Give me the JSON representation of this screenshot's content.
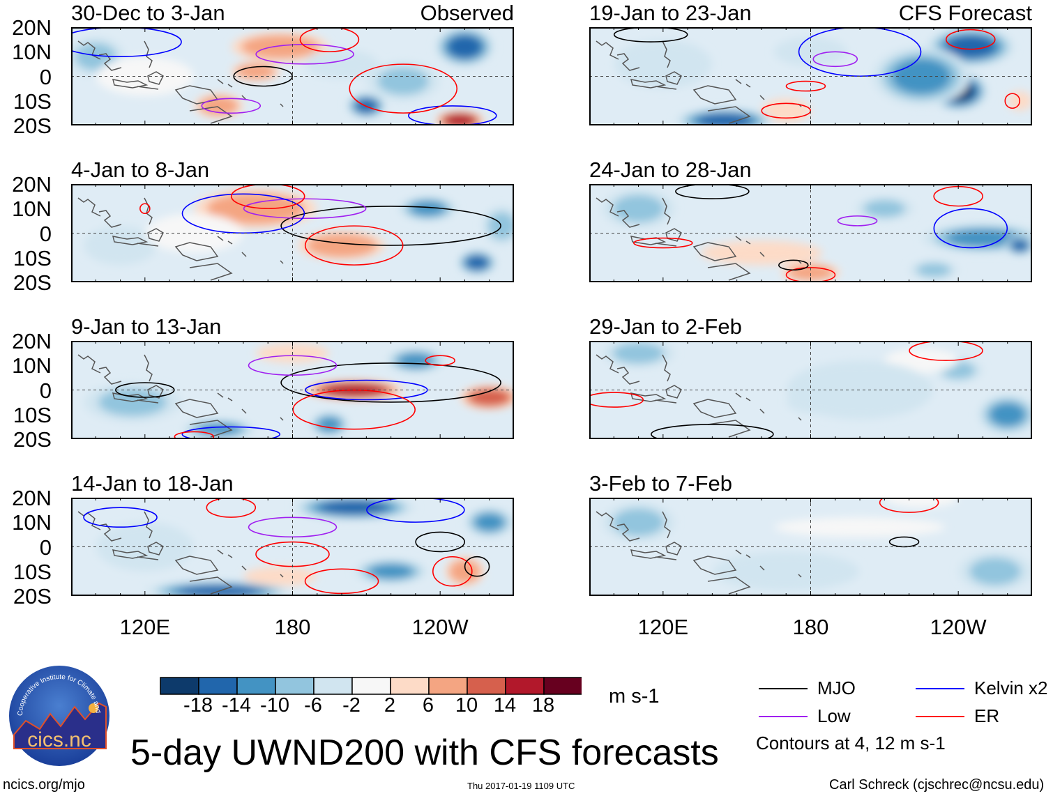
{
  "chart_data": {
    "type": "heatmap",
    "title": "5-day UWND200 with CFS forecasts",
    "units": "m s-1",
    "lon_range": [
      90,
      270
    ],
    "lat_range": [
      -20,
      20
    ],
    "lat_ticks": [
      "20N",
      "10N",
      "0",
      "10S",
      "20S"
    ],
    "lon_ticks": [
      "120E",
      "180",
      "120W"
    ],
    "lon_tick_values": [
      120,
      180,
      240
    ],
    "column_labels": {
      "left": "Observed",
      "right": "CFS Forecast"
    },
    "colorbar": {
      "levels": [
        "-18",
        "-14",
        "-10",
        "-6",
        "-2",
        "2",
        "6",
        "10",
        "14",
        "18"
      ],
      "colors": [
        "#0d3a6b",
        "#2166ac",
        "#4393c3",
        "#92c5de",
        "#d1e5f0",
        "#f7f7f7",
        "#fddbc7",
        "#f4a582",
        "#d6604d",
        "#b2182b",
        "#67001f"
      ]
    },
    "legend": [
      {
        "label": "MJO",
        "color": "#000000"
      },
      {
        "label": "Kelvin x2",
        "color": "#0000ff"
      },
      {
        "label": "Low",
        "color": "#a020f0"
      },
      {
        "label": "ER",
        "color": "#ff0000"
      }
    ],
    "contour_note": "Contours at 4, 12 m s-1",
    "panels": [
      {
        "title": "30-Dec to 3-Jan",
        "corner": "Observed",
        "blobs": [
          [
            100,
            8,
            -6,
            12,
            8
          ],
          [
            250,
            12,
            -14,
            12,
            8
          ],
          [
            210,
            -12,
            -14,
            8,
            5
          ],
          [
            248,
            -18,
            18,
            10,
            4
          ],
          [
            175,
            12,
            8,
            20,
            6
          ],
          [
            150,
            -12,
            8,
            10,
            5
          ],
          [
            165,
            2,
            8,
            10,
            4
          ],
          [
            225,
            -2,
            -6,
            15,
            8
          ],
          [
            120,
            0,
            2,
            20,
            8
          ],
          [
            200,
            5,
            -2,
            15,
            6
          ]
        ],
        "contours": [
          [
            "MJO",
            168,
            0,
            12,
            4
          ],
          [
            "Low",
            185,
            9,
            20,
            4
          ],
          [
            "Low",
            155,
            -12,
            12,
            3
          ],
          [
            "Kelvin",
            245,
            -16,
            18,
            4
          ],
          [
            "ER",
            225,
            -5,
            22,
            10
          ],
          [
            "ER",
            195,
            15,
            12,
            5
          ],
          [
            "Kelvin",
            110,
            14,
            25,
            6
          ]
        ]
      },
      {
        "title": "19-Jan to 23-Jan",
        "corner": "CFS Forecast",
        "blobs": [
          [
            245,
            12,
            -14,
            18,
            8
          ],
          [
            240,
            -6,
            -18,
            12,
            8
          ],
          [
            225,
            0,
            -10,
            20,
            12
          ],
          [
            170,
            -14,
            6,
            10,
            5
          ],
          [
            145,
            -18,
            -14,
            20,
            5
          ],
          [
            120,
            5,
            -2,
            20,
            10
          ],
          [
            180,
            10,
            -2,
            15,
            6
          ],
          [
            265,
            -10,
            6,
            5,
            4
          ]
        ],
        "contours": [
          [
            "Low",
            190,
            7,
            9,
            3
          ],
          [
            "Kelvin",
            200,
            10,
            25,
            10
          ],
          [
            "ER",
            178,
            -4,
            8,
            2
          ],
          [
            "ER",
            170,
            -14,
            10,
            3
          ],
          [
            "ER",
            245,
            15,
            10,
            4
          ],
          [
            "ER",
            262,
            -10,
            3,
            3
          ],
          [
            "MJO",
            115,
            17,
            15,
            3
          ]
        ]
      },
      {
        "title": "4-Jan to 8-Jan",
        "corner": "",
        "blobs": [
          [
            165,
            10,
            10,
            25,
            8
          ],
          [
            200,
            -5,
            10,
            18,
            6
          ],
          [
            255,
            -12,
            -14,
            8,
            5
          ],
          [
            235,
            10,
            -10,
            12,
            5
          ],
          [
            265,
            3,
            -6,
            8,
            8
          ],
          [
            110,
            -5,
            -2,
            15,
            8
          ],
          [
            140,
            0,
            2,
            20,
            8
          ]
        ],
        "contours": [
          [
            "MJO",
            220,
            3,
            45,
            8
          ],
          [
            "Low",
            185,
            10,
            25,
            4
          ],
          [
            "Kelvin",
            160,
            8,
            25,
            8
          ],
          [
            "ER",
            205,
            -5,
            20,
            8
          ],
          [
            "ER",
            170,
            15,
            15,
            5
          ],
          [
            "ER",
            120,
            10,
            2,
            2
          ]
        ]
      },
      {
        "title": "24-Jan to 28-Jan",
        "corner": "",
        "blobs": [
          [
            250,
            -2,
            -10,
            25,
            6
          ],
          [
            265,
            -5,
            -14,
            6,
            4
          ],
          [
            160,
            -8,
            6,
            25,
            5
          ],
          [
            180,
            -16,
            10,
            12,
            4
          ],
          [
            210,
            10,
            -6,
            12,
            5
          ],
          [
            110,
            10,
            -6,
            15,
            8
          ],
          [
            230,
            -15,
            -6,
            10,
            4
          ]
        ],
        "contours": [
          [
            "Low",
            199,
            5,
            8,
            2
          ],
          [
            "Kelvin",
            245,
            2,
            15,
            8
          ],
          [
            "ER",
            240,
            15,
            10,
            4
          ],
          [
            "ER",
            180,
            -17,
            10,
            3
          ],
          [
            "ER",
            120,
            -4,
            12,
            2
          ],
          [
            "MJO",
            173,
            -13,
            6,
            2
          ],
          [
            "MJO",
            140,
            17,
            15,
            3
          ]
        ]
      },
      {
        "title": "9-Jan to 13-Jan",
        "corner": "",
        "blobs": [
          [
            205,
            0,
            18,
            20,
            4
          ],
          [
            260,
            -3,
            14,
            12,
            5
          ],
          [
            230,
            12,
            -10,
            12,
            5
          ],
          [
            195,
            -14,
            -10,
            8,
            5
          ],
          [
            150,
            -16,
            -10,
            15,
            4
          ],
          [
            115,
            -5,
            -6,
            20,
            8
          ],
          [
            180,
            15,
            6,
            15,
            4
          ]
        ],
        "contours": [
          [
            "MJO",
            220,
            3,
            45,
            8
          ],
          [
            "MJO",
            120,
            0,
            12,
            3
          ],
          [
            "Kelvin",
            210,
            0,
            25,
            4
          ],
          [
            "Low",
            180,
            10,
            18,
            4
          ],
          [
            "ER",
            205,
            -8,
            25,
            8
          ],
          [
            "ER",
            240,
            12,
            6,
            2
          ],
          [
            "Kelvin",
            155,
            -18,
            20,
            3
          ],
          [
            "ER",
            140,
            -19,
            8,
            2
          ]
        ]
      },
      {
        "title": "29-Jan to 2-Feb",
        "corner": "",
        "blobs": [
          [
            260,
            -10,
            -10,
            12,
            8
          ],
          [
            185,
            -5,
            -6,
            15,
            5
          ],
          [
            240,
            8,
            -6,
            10,
            5
          ],
          [
            110,
            15,
            -6,
            15,
            6
          ],
          [
            225,
            12,
            2,
            15,
            5
          ],
          [
            200,
            0,
            -2,
            30,
            12
          ]
        ],
        "contours": [
          [
            "ER",
            235,
            16,
            15,
            4
          ],
          [
            "ER",
            100,
            -4,
            12,
            3
          ],
          [
            "MJO",
            140,
            -18,
            25,
            4
          ]
        ]
      },
      {
        "title": "14-Jan to 18-Jan",
        "corner": "",
        "blobs": [
          [
            205,
            16,
            -14,
            25,
            5
          ],
          [
            220,
            -10,
            -10,
            15,
            5
          ],
          [
            260,
            10,
            -10,
            10,
            6
          ],
          [
            250,
            -10,
            10,
            8,
            6
          ],
          [
            150,
            -18,
            -14,
            30,
            4
          ],
          [
            120,
            0,
            -2,
            20,
            10
          ],
          [
            175,
            -12,
            6,
            15,
            4
          ]
        ],
        "contours": [
          [
            "Low",
            180,
            8,
            18,
            4
          ],
          [
            "Kelvin",
            110,
            12,
            15,
            4
          ],
          [
            "MJO",
            240,
            2,
            10,
            4
          ],
          [
            "ER",
            180,
            -3,
            15,
            5
          ],
          [
            "ER",
            200,
            -14,
            15,
            5
          ],
          [
            "ER",
            245,
            -10,
            8,
            6
          ],
          [
            "MJO",
            255,
            -8,
            5,
            4
          ],
          [
            "ER",
            155,
            16,
            10,
            4
          ],
          [
            "Kelvin",
            230,
            15,
            20,
            5
          ]
        ]
      },
      {
        "title": "3-Feb to 7-Feb",
        "corner": "",
        "blobs": [
          [
            200,
            8,
            2,
            35,
            4
          ],
          [
            255,
            -10,
            -6,
            15,
            8
          ],
          [
            110,
            10,
            -6,
            15,
            8
          ],
          [
            170,
            -10,
            -2,
            30,
            8
          ],
          [
            225,
            20,
            2,
            15,
            4
          ]
        ],
        "contours": [
          [
            "MJO",
            218,
            2,
            6,
            2
          ],
          [
            "ER",
            220,
            18,
            12,
            4
          ]
        ]
      }
    ]
  },
  "footer": {
    "title": "5-day UWND200 with CFS forecasts",
    "url": "ncics.org/mjo",
    "timestamp": "Thu 2017-01-19 1109 UTC",
    "author": "Carl Schreck (cjschrec@ncsu.edu)",
    "logo_text": "cics.nc",
    "logo_ring": "Cooperative Institute for Climate and Satellites"
  }
}
